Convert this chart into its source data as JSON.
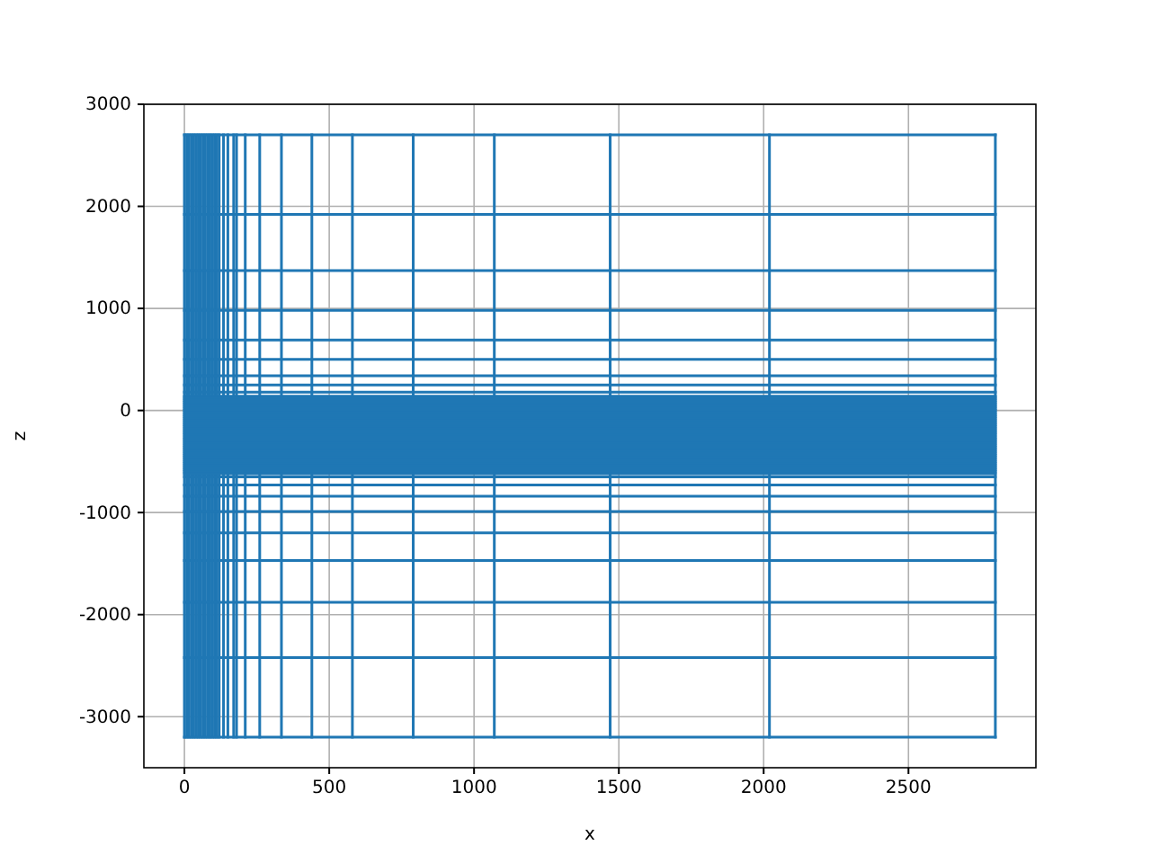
{
  "chart_data": {
    "type": "line",
    "xlabel": "x",
    "ylabel": "z",
    "xlim": [
      -140,
      2940
    ],
    "ylim": [
      -3500,
      3000
    ],
    "xticks": [
      0,
      500,
      1000,
      1500,
      2000,
      2500
    ],
    "yticks": [
      -3000,
      -2000,
      -1000,
      0,
      1000,
      2000,
      3000
    ],
    "grid": true,
    "series": [
      {
        "color": "#1f77b4",
        "x": [
          0,
          0
        ],
        "values": [
          2700,
          -3200
        ]
      },
      {
        "color": "#1f77b4",
        "x": [
          8,
          8
        ],
        "values": [
          2700,
          -3200
        ]
      },
      {
        "color": "#1f77b4",
        "x": [
          16,
          16
        ],
        "values": [
          2700,
          -3200
        ]
      },
      {
        "color": "#1f77b4",
        "x": [
          24,
          24
        ],
        "values": [
          2700,
          -3200
        ]
      },
      {
        "color": "#1f77b4",
        "x": [
          32,
          32
        ],
        "values": [
          2700,
          -3200
        ]
      },
      {
        "color": "#1f77b4",
        "x": [
          40,
          40
        ],
        "values": [
          2700,
          -3200
        ]
      },
      {
        "color": "#1f77b4",
        "x": [
          48,
          48
        ],
        "values": [
          2700,
          -3200
        ]
      },
      {
        "color": "#1f77b4",
        "x": [
          56,
          56
        ],
        "values": [
          2700,
          -3200
        ]
      },
      {
        "color": "#1f77b4",
        "x": [
          64,
          64
        ],
        "values": [
          2700,
          -3200
        ]
      },
      {
        "color": "#1f77b4",
        "x": [
          72,
          72
        ],
        "values": [
          2700,
          -3200
        ]
      },
      {
        "color": "#1f77b4",
        "x": [
          80,
          80
        ],
        "values": [
          2700,
          -3200
        ]
      },
      {
        "color": "#1f77b4",
        "x": [
          88,
          88
        ],
        "values": [
          2700,
          -3200
        ]
      },
      {
        "color": "#1f77b4",
        "x": [
          96,
          96
        ],
        "values": [
          2700,
          -3200
        ]
      },
      {
        "color": "#1f77b4",
        "x": [
          104,
          104
        ],
        "values": [
          2700,
          -3200
        ]
      },
      {
        "color": "#1f77b4",
        "x": [
          112,
          112
        ],
        "values": [
          2700,
          -3200
        ]
      },
      {
        "color": "#1f77b4",
        "x": [
          120,
          120
        ],
        "values": [
          2700,
          -3200
        ]
      },
      {
        "color": "#1f77b4",
        "x": [
          135,
          135
        ],
        "values": [
          2700,
          -3200
        ]
      },
      {
        "color": "#1f77b4",
        "x": [
          150,
          150
        ],
        "values": [
          2700,
          -3200
        ]
      },
      {
        "color": "#1f77b4",
        "x": [
          170,
          170
        ],
        "values": [
          2700,
          -3200
        ]
      },
      {
        "color": "#1f77b4",
        "x": [
          180,
          180
        ],
        "values": [
          2700,
          -3200
        ]
      },
      {
        "color": "#1f77b4",
        "x": [
          210,
          210
        ],
        "values": [
          2700,
          -3200
        ]
      },
      {
        "color": "#1f77b4",
        "x": [
          260,
          260
        ],
        "values": [
          2700,
          -3200
        ]
      },
      {
        "color": "#1f77b4",
        "x": [
          335,
          335
        ],
        "values": [
          2700,
          -3200
        ]
      },
      {
        "color": "#1f77b4",
        "x": [
          440,
          440
        ],
        "values": [
          2700,
          -3200
        ]
      },
      {
        "color": "#1f77b4",
        "x": [
          580,
          580
        ],
        "values": [
          2700,
          -3200
        ]
      },
      {
        "color": "#1f77b4",
        "x": [
          790,
          790
        ],
        "values": [
          2700,
          -3200
        ]
      },
      {
        "color": "#1f77b4",
        "x": [
          1070,
          1070
        ],
        "values": [
          2700,
          -3200
        ]
      },
      {
        "color": "#1f77b4",
        "x": [
          1470,
          1470
        ],
        "values": [
          2700,
          -3200
        ]
      },
      {
        "color": "#1f77b4",
        "x": [
          2020,
          2020
        ],
        "values": [
          2700,
          -3200
        ]
      },
      {
        "color": "#1f77b4",
        "x": [
          2800,
          2800
        ],
        "values": [
          2700,
          -3200
        ]
      },
      {
        "color": "#1f77b4",
        "x": [
          0,
          2800
        ],
        "values": [
          2700,
          2700
        ]
      },
      {
        "color": "#1f77b4",
        "x": [
          0,
          2800
        ],
        "values": [
          1920,
          1920
        ]
      },
      {
        "color": "#1f77b4",
        "x": [
          0,
          2800
        ],
        "values": [
          1370,
          1370
        ]
      },
      {
        "color": "#1f77b4",
        "x": [
          0,
          2800
        ],
        "values": [
          980,
          980
        ]
      },
      {
        "color": "#1f77b4",
        "x": [
          0,
          2800
        ],
        "values": [
          690,
          690
        ]
      },
      {
        "color": "#1f77b4",
        "x": [
          0,
          2800
        ],
        "values": [
          500,
          500
        ]
      },
      {
        "color": "#1f77b4",
        "x": [
          0,
          2800
        ],
        "values": [
          340,
          340
        ]
      },
      {
        "color": "#1f77b4",
        "x": [
          0,
          2800
        ],
        "values": [
          250,
          250
        ]
      },
      {
        "color": "#1f77b4",
        "x": [
          0,
          2800
        ],
        "values": [
          180,
          180
        ]
      },
      {
        "color": "#1f77b4",
        "x": [
          0,
          2800
        ],
        "values": [
          140,
          140
        ]
      },
      {
        "color": "#1f77b4",
        "x": [
          0,
          2800
        ],
        "values": [
          120,
          120
        ]
      },
      {
        "color": "#1f77b4",
        "x": [
          0,
          2800
        ],
        "values": [
          100,
          100
        ]
      },
      {
        "color": "#1f77b4",
        "x": [
          0,
          2800
        ],
        "values": [
          80,
          80
        ]
      },
      {
        "color": "#1f77b4",
        "x": [
          0,
          2800
        ],
        "values": [
          60,
          60
        ]
      },
      {
        "color": "#1f77b4",
        "x": [
          0,
          2800
        ],
        "values": [
          40,
          40
        ]
      },
      {
        "color": "#1f77b4",
        "x": [
          0,
          2800
        ],
        "values": [
          20,
          20
        ]
      },
      {
        "color": "#1f77b4",
        "x": [
          0,
          2800
        ],
        "values": [
          0,
          0
        ]
      },
      {
        "color": "#1f77b4",
        "x": [
          0,
          2800
        ],
        "values": [
          -20,
          -20
        ]
      },
      {
        "color": "#1f77b4",
        "x": [
          0,
          2800
        ],
        "values": [
          -40,
          -40
        ]
      },
      {
        "color": "#1f77b4",
        "x": [
          0,
          2800
        ],
        "values": [
          -60,
          -60
        ]
      },
      {
        "color": "#1f77b4",
        "x": [
          0,
          2800
        ],
        "values": [
          -80,
          -80
        ]
      },
      {
        "color": "#1f77b4",
        "x": [
          0,
          2800
        ],
        "values": [
          -100,
          -100
        ]
      },
      {
        "color": "#1f77b4",
        "x": [
          0,
          2800
        ],
        "values": [
          -120,
          -120
        ]
      },
      {
        "color": "#1f77b4",
        "x": [
          0,
          2800
        ],
        "values": [
          -140,
          -140
        ]
      },
      {
        "color": "#1f77b4",
        "x": [
          0,
          2800
        ],
        "values": [
          -160,
          -160
        ]
      },
      {
        "color": "#1f77b4",
        "x": [
          0,
          2800
        ],
        "values": [
          -180,
          -180
        ]
      },
      {
        "color": "#1f77b4",
        "x": [
          0,
          2800
        ],
        "values": [
          -200,
          -200
        ]
      },
      {
        "color": "#1f77b4",
        "x": [
          0,
          2800
        ],
        "values": [
          -220,
          -220
        ]
      },
      {
        "color": "#1f77b4",
        "x": [
          0,
          2800
        ],
        "values": [
          -240,
          -240
        ]
      },
      {
        "color": "#1f77b4",
        "x": [
          0,
          2800
        ],
        "values": [
          -260,
          -260
        ]
      },
      {
        "color": "#1f77b4",
        "x": [
          0,
          2800
        ],
        "values": [
          -280,
          -280
        ]
      },
      {
        "color": "#1f77b4",
        "x": [
          0,
          2800
        ],
        "values": [
          -300,
          -300
        ]
      },
      {
        "color": "#1f77b4",
        "x": [
          0,
          2800
        ],
        "values": [
          -320,
          -320
        ]
      },
      {
        "color": "#1f77b4",
        "x": [
          0,
          2800
        ],
        "values": [
          -340,
          -340
        ]
      },
      {
        "color": "#1f77b4",
        "x": [
          0,
          2800
        ],
        "values": [
          -360,
          -360
        ]
      },
      {
        "color": "#1f77b4",
        "x": [
          0,
          2800
        ],
        "values": [
          -380,
          -380
        ]
      },
      {
        "color": "#1f77b4",
        "x": [
          0,
          2800
        ],
        "values": [
          -400,
          -400
        ]
      },
      {
        "color": "#1f77b4",
        "x": [
          0,
          2800
        ],
        "values": [
          -420,
          -420
        ]
      },
      {
        "color": "#1f77b4",
        "x": [
          0,
          2800
        ],
        "values": [
          -440,
          -440
        ]
      },
      {
        "color": "#1f77b4",
        "x": [
          0,
          2800
        ],
        "values": [
          -460,
          -460
        ]
      },
      {
        "color": "#1f77b4",
        "x": [
          0,
          2800
        ],
        "values": [
          -480,
          -480
        ]
      },
      {
        "color": "#1f77b4",
        "x": [
          0,
          2800
        ],
        "values": [
          -500,
          -500
        ]
      },
      {
        "color": "#1f77b4",
        "x": [
          0,
          2800
        ],
        "values": [
          -520,
          -520
        ]
      },
      {
        "color": "#1f77b4",
        "x": [
          0,
          2800
        ],
        "values": [
          -540,
          -540
        ]
      },
      {
        "color": "#1f77b4",
        "x": [
          0,
          2800
        ],
        "values": [
          -560,
          -560
        ]
      },
      {
        "color": "#1f77b4",
        "x": [
          0,
          2800
        ],
        "values": [
          -580,
          -580
        ]
      },
      {
        "color": "#1f77b4",
        "x": [
          0,
          2800
        ],
        "values": [
          -600,
          -600
        ]
      },
      {
        "color": "#1f77b4",
        "x": [
          0,
          2800
        ],
        "values": [
          -620,
          -620
        ]
      },
      {
        "color": "#1f77b4",
        "x": [
          0,
          2800
        ],
        "values": [
          -650,
          -650
        ]
      },
      {
        "color": "#1f77b4",
        "x": [
          0,
          2800
        ],
        "values": [
          -730,
          -730
        ]
      },
      {
        "color": "#1f77b4",
        "x": [
          0,
          2800
        ],
        "values": [
          -840,
          -840
        ]
      },
      {
        "color": "#1f77b4",
        "x": [
          0,
          2800
        ],
        "values": [
          -990,
          -990
        ]
      },
      {
        "color": "#1f77b4",
        "x": [
          0,
          2800
        ],
        "values": [
          -1200,
          -1200
        ]
      },
      {
        "color": "#1f77b4",
        "x": [
          0,
          2800
        ],
        "values": [
          -1470,
          -1470
        ]
      },
      {
        "color": "#1f77b4",
        "x": [
          0,
          2800
        ],
        "values": [
          -1880,
          -1880
        ]
      },
      {
        "color": "#1f77b4",
        "x": [
          0,
          2800
        ],
        "values": [
          -2420,
          -2420
        ]
      },
      {
        "color": "#1f77b4",
        "x": [
          0,
          2800
        ],
        "values": [
          -3200,
          -3200
        ]
      }
    ]
  }
}
